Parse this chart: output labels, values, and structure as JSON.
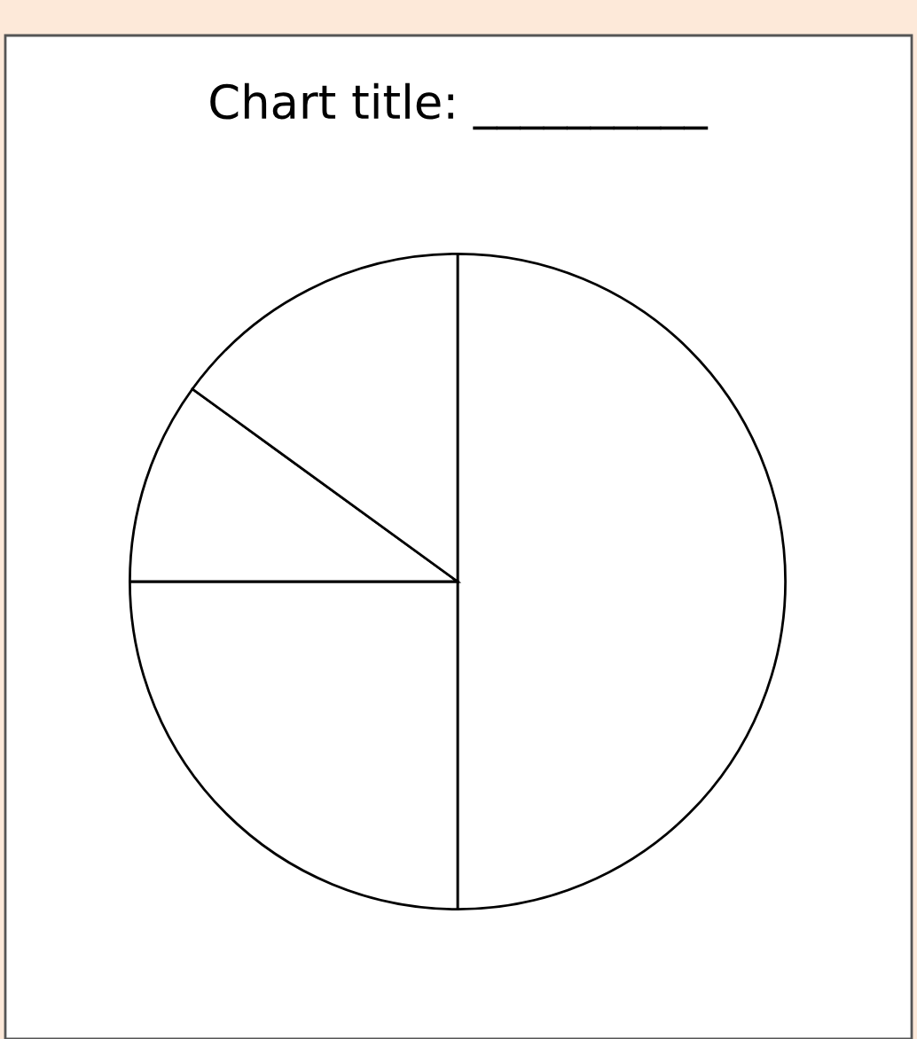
{
  "chart_data": {
    "type": "pie",
    "title": "Chart title: __________",
    "categories": [
      null,
      null,
      null,
      null
    ],
    "values": [
      50,
      25,
      10,
      15
    ],
    "colors": [
      "#ffffff",
      "#ffffff",
      "#ffffff",
      "#ffffff"
    ]
  }
}
